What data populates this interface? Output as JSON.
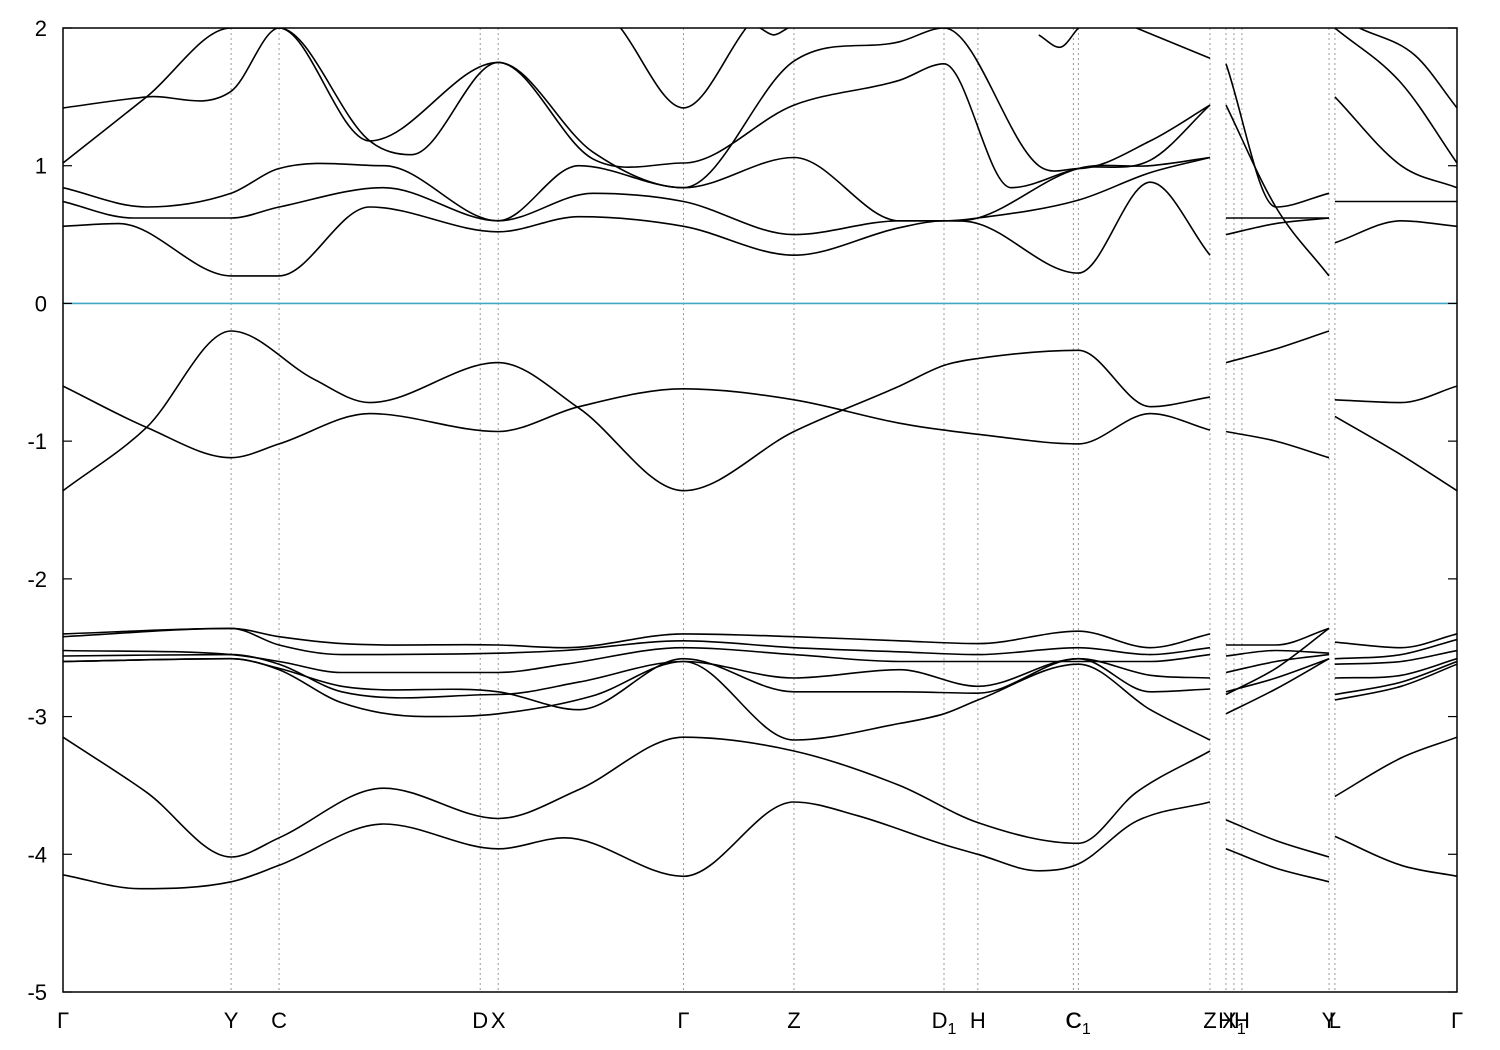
{
  "chart_data": {
    "type": "line",
    "title": "",
    "xlabel": "",
    "ylabel": "",
    "xlim": [
      0,
      1
    ],
    "ylim": [
      -5,
      2
    ],
    "yticks": [
      2,
      1,
      0,
      -1,
      -2,
      -3,
      -4,
      -5
    ],
    "ytick_labels": [
      "2",
      "1",
      "0",
      "-1",
      "-2",
      "-3",
      "-4",
      "-5"
    ],
    "grid": "vertical dotted lines at high-symmetry points",
    "fermi_level": {
      "value": 0,
      "color": "#3fa9c4"
    },
    "line_color": "#000000",
    "kpoints": [
      {
        "label": "Γ",
        "sub": "",
        "x": 0.0
      },
      {
        "label": "Y",
        "sub": "",
        "x": 0.1206
      },
      {
        "label": "C",
        "sub": "",
        "x": 0.155
      },
      {
        "label": "D",
        "sub": "",
        "x": 0.2993
      },
      {
        "label": "X",
        "sub": "",
        "x": 0.3122
      },
      {
        "label": "Γ",
        "sub": "",
        "x": 0.4451
      },
      {
        "label": "Z",
        "sub": "",
        "x": 0.5244
      },
      {
        "label": "D",
        "sub": "1",
        "x": 0.632
      },
      {
        "label": "H",
        "sub": "",
        "x": 0.6563
      },
      {
        "label": "C",
        "sub": "",
        "x": 0.7248
      },
      {
        "label": "C",
        "sub": "1",
        "x": 0.7284
      },
      {
        "label": "Z",
        "sub": "",
        "x": 0.8228
      },
      {
        "label": "H",
        "sub": "",
        "x": 0.8343
      },
      {
        "label": "X",
        "sub": "1",
        "x": 0.84
      },
      {
        "label": "H",
        "sub": "",
        "x": 0.8457
      },
      {
        "label": "Y",
        "sub": "",
        "x": 0.9082
      },
      {
        "label": "L",
        "sub": "",
        "x": 0.9124
      },
      {
        "label": "Γ",
        "sub": "",
        "x": 1.0
      }
    ],
    "series": [
      {
        "x": [
          0.0,
          0.055,
          0.1206,
          0.155,
          0.23,
          0.3122,
          0.36,
          0.4451,
          0.5244,
          0.57,
          0.632,
          0.6563,
          0.7,
          0.7284,
          0.77,
          0.8228
        ],
        "y": [
          -4.15,
          -4.25,
          -4.2,
          -4.08,
          -3.78,
          -3.96,
          -3.88,
          -4.16,
          -3.62,
          -3.72,
          -3.93,
          -4.0,
          -4.12,
          -4.07,
          -3.76,
          -3.62
        ]
      },
      {
        "x": [
          0.0,
          0.06,
          0.1206,
          0.155,
          0.23,
          0.3122,
          0.37,
          0.4451,
          0.5244,
          0.6,
          0.6563,
          0.7284,
          0.77,
          0.8228
        ],
        "y": [
          -3.15,
          -3.55,
          -4.02,
          -3.88,
          -3.52,
          -3.74,
          -3.53,
          -3.15,
          -3.25,
          -3.5,
          -3.77,
          -3.92,
          -3.55,
          -3.25
        ]
      },
      {
        "x": [
          0.8343,
          0.87,
          0.9082
        ],
        "y": [
          -3.75,
          -3.9,
          -4.02
        ]
      },
      {
        "x": [
          0.8343,
          0.87,
          0.9082
        ],
        "y": [
          -3.96,
          -4.1,
          -4.2
        ]
      },
      {
        "x": [
          0.9124,
          0.96,
          1.0
        ],
        "y": [
          -3.58,
          -3.3,
          -3.15
        ]
      },
      {
        "x": [
          0.9124,
          0.96,
          1.0
        ],
        "y": [
          -3.87,
          -4.08,
          -4.16
        ]
      },
      {
        "x": [
          0.0,
          0.1206,
          0.155,
          0.2,
          0.3122,
          0.36,
          0.4451,
          0.5244,
          0.6,
          0.6563,
          0.7284,
          0.78,
          0.8228
        ],
        "y": [
          -2.4,
          -2.36,
          -2.42,
          -2.47,
          -2.48,
          -2.5,
          -2.4,
          -2.42,
          -2.45,
          -2.47,
          -2.38,
          -2.5,
          -2.4
        ]
      },
      {
        "x": [
          0.0,
          0.1206,
          0.155,
          0.2,
          0.3122,
          0.36,
          0.4451,
          0.5244,
          0.6,
          0.6563,
          0.7284,
          0.78,
          0.8228
        ],
        "y": [
          -2.42,
          -2.36,
          -2.48,
          -2.55,
          -2.54,
          -2.52,
          -2.45,
          -2.5,
          -2.53,
          -2.55,
          -2.5,
          -2.55,
          -2.5
        ]
      },
      {
        "x": [
          0.0,
          0.1206,
          0.155,
          0.2,
          0.3122,
          0.36,
          0.4451,
          0.5244,
          0.6,
          0.6563,
          0.7284,
          0.78,
          0.8228
        ],
        "y": [
          -2.52,
          -2.55,
          -2.6,
          -2.68,
          -2.68,
          -2.62,
          -2.5,
          -2.55,
          -2.6,
          -2.6,
          -2.6,
          -2.6,
          -2.55
        ]
      },
      {
        "x": [
          0.0,
          0.1206,
          0.155,
          0.2,
          0.3122,
          0.37,
          0.4451,
          0.5244,
          0.6,
          0.6563,
          0.7284,
          0.78,
          0.8228
        ],
        "y": [
          -2.56,
          -2.55,
          -2.62,
          -2.82,
          -2.84,
          -2.75,
          -2.6,
          -2.72,
          -2.66,
          -2.78,
          -2.58,
          -2.7,
          -2.72
        ]
      },
      {
        "x": [
          0.0,
          0.1206,
          0.155,
          0.2,
          0.3122,
          0.37,
          0.4451,
          0.5244,
          0.6,
          0.6563,
          0.7284,
          0.78,
          0.8228
        ],
        "y": [
          -2.6,
          -2.58,
          -2.65,
          -2.78,
          -2.82,
          -2.95,
          -2.58,
          -2.82,
          -2.82,
          -2.83,
          -2.58,
          -2.82,
          -2.8
        ]
      },
      {
        "x": [
          0.0,
          0.1206,
          0.155,
          0.2,
          0.26,
          0.3122,
          0.38,
          0.4451,
          0.5244,
          0.6,
          0.632,
          0.6563,
          0.7284,
          0.78,
          0.8228
        ],
        "y": [
          -2.6,
          -2.58,
          -2.66,
          -2.9,
          -3.0,
          -2.98,
          -2.85,
          -2.6,
          -3.17,
          -3.05,
          -2.98,
          -2.88,
          -2.62,
          -2.95,
          -3.17
        ]
      },
      {
        "x": [
          0.8343,
          0.87,
          0.9082
        ],
        "y": [
          -2.48,
          -2.48,
          -2.36
        ]
      },
      {
        "x": [
          0.8343,
          0.87,
          0.9082
        ],
        "y": [
          -2.56,
          -2.52,
          -2.54
        ]
      },
      {
        "x": [
          0.8343,
          0.87,
          0.9082
        ],
        "y": [
          -2.68,
          -2.6,
          -2.55
        ]
      },
      {
        "x": [
          0.8343,
          0.87,
          0.9082
        ],
        "y": [
          -2.82,
          -2.72,
          -2.58
        ]
      },
      {
        "x": [
          0.8343,
          0.87,
          0.9082
        ],
        "y": [
          -2.84,
          -2.65,
          -2.36
        ]
      },
      {
        "x": [
          0.8343,
          0.87,
          0.9082
        ],
        "y": [
          -2.98,
          -2.8,
          -2.58
        ]
      },
      {
        "x": [
          0.9124,
          0.96,
          1.0
        ],
        "y": [
          -2.46,
          -2.5,
          -2.4
        ]
      },
      {
        "x": [
          0.9124,
          0.96,
          1.0
        ],
        "y": [
          -2.58,
          -2.55,
          -2.44
        ]
      },
      {
        "x": [
          0.9124,
          0.96,
          1.0
        ],
        "y": [
          -2.62,
          -2.6,
          -2.52
        ]
      },
      {
        "x": [
          0.9124,
          0.96,
          1.0
        ],
        "y": [
          -2.72,
          -2.7,
          -2.58
        ]
      },
      {
        "x": [
          0.9124,
          0.96,
          1.0
        ],
        "y": [
          -2.84,
          -2.75,
          -2.6
        ]
      },
      {
        "x": [
          0.9124,
          0.96,
          1.0
        ],
        "y": [
          -2.88,
          -2.78,
          -2.62
        ]
      },
      {
        "x": [
          0.0,
          0.06,
          0.1206,
          0.18,
          0.22,
          0.3122,
          0.37,
          0.4451,
          0.5244,
          0.6,
          0.632,
          0.6563,
          0.7284,
          0.78,
          0.8228
        ],
        "y": [
          -1.36,
          -0.9,
          -0.2,
          -0.55,
          -0.72,
          -0.43,
          -0.76,
          -1.36,
          -0.93,
          -0.6,
          -0.45,
          -0.4,
          -0.34,
          -0.75,
          -0.68
        ]
      },
      {
        "x": [
          0.0,
          0.06,
          0.1206,
          0.155,
          0.22,
          0.3122,
          0.37,
          0.4451,
          0.5244,
          0.6,
          0.632,
          0.6563,
          0.7284,
          0.78,
          0.8228
        ],
        "y": [
          -0.6,
          -0.9,
          -1.12,
          -1.02,
          -0.8,
          -0.93,
          -0.75,
          -0.62,
          -0.7,
          -0.87,
          -0.92,
          -0.95,
          -1.02,
          -0.8,
          -0.92
        ]
      },
      {
        "x": [
          0.8343,
          0.87,
          0.9082
        ],
        "y": [
          -0.43,
          -0.33,
          -0.2
        ]
      },
      {
        "x": [
          0.8343,
          0.87,
          0.9082
        ],
        "y": [
          -0.93,
          -1.0,
          -1.12
        ]
      },
      {
        "x": [
          0.9124,
          0.96,
          1.0
        ],
        "y": [
          -0.7,
          -0.72,
          -0.6
        ]
      },
      {
        "x": [
          0.9124,
          0.96,
          1.0
        ],
        "y": [
          -0.82,
          -1.1,
          -1.36
        ]
      },
      {
        "x": [
          0.0,
          0.04,
          0.1206,
          0.155,
          0.22,
          0.3122,
          0.37,
          0.4451,
          0.5244,
          0.6,
          0.632,
          0.6563,
          0.7284,
          0.78,
          0.8228
        ],
        "y": [
          0.56,
          0.58,
          0.2,
          0.2,
          0.7,
          0.52,
          0.63,
          0.56,
          0.35,
          0.55,
          0.6,
          0.58,
          0.22,
          0.88,
          0.35
        ]
      },
      {
        "x": [
          0.0,
          0.05,
          0.1206,
          0.155,
          0.23,
          0.3122,
          0.38,
          0.4451,
          0.5244,
          0.6,
          0.632,
          0.6563,
          0.7284,
          0.78,
          0.8228
        ],
        "y": [
          0.74,
          0.62,
          0.62,
          0.7,
          0.84,
          0.6,
          0.8,
          0.74,
          0.5,
          0.6,
          0.6,
          0.62,
          0.75,
          0.95,
          1.06
        ]
      },
      {
        "x": [
          0.0,
          0.06,
          0.1206,
          0.155,
          0.23,
          0.3122,
          0.37,
          0.4451,
          0.5244,
          0.6,
          0.632,
          0.6563,
          0.7284,
          0.78,
          0.8228
        ],
        "y": [
          0.84,
          0.7,
          0.8,
          0.98,
          1.0,
          0.6,
          1.0,
          0.84,
          1.06,
          0.6,
          0.6,
          0.62,
          0.98,
          1.0,
          1.06
        ]
      },
      {
        "x": [
          0.0,
          0.06,
          0.1206,
          0.155,
          0.22,
          0.3122,
          0.38,
          0.4451,
          0.5244,
          0.6,
          0.632,
          0.68,
          0.7284,
          0.78,
          0.8228
        ],
        "y": [
          1.02,
          1.5,
          2.0,
          2.0,
          1.18,
          1.75,
          1.05,
          1.02,
          1.44,
          1.62,
          1.74,
          0.84,
          0.98,
          1.04,
          1.44
        ]
      },
      {
        "x": [
          0.0,
          0.06,
          0.1206,
          0.155,
          0.22,
          0.25,
          0.3122,
          0.38,
          0.4451,
          0.5244,
          0.6,
          0.632,
          0.7,
          0.7284,
          0.78,
          0.8228
        ],
        "y": [
          1.42,
          1.5,
          1.54,
          2.0,
          1.18,
          1.08,
          1.75,
          1.1,
          0.84,
          1.76,
          1.9,
          2.0,
          1.0,
          0.98,
          1.18,
          1.44
        ]
      },
      {
        "x": [
          0.4,
          0.4451,
          0.49
        ],
        "y": [
          2.0,
          1.42,
          2.0
        ]
      },
      {
        "x": [
          0.5,
          0.51,
          0.52
        ],
        "y": [
          2.0,
          1.95,
          2.0
        ]
      },
      {
        "x": [
          0.7,
          0.715,
          0.7284
        ],
        "y": [
          1.95,
          1.86,
          2.0
        ]
      },
      {
        "x": [
          0.77,
          0.8228
        ],
        "y": [
          2.0,
          1.78
        ]
      },
      {
        "x": [
          0.8343,
          0.87,
          0.9082
        ],
        "y": [
          0.62,
          0.62,
          0.62
        ]
      },
      {
        "x": [
          0.8343,
          0.87,
          0.9082
        ],
        "y": [
          0.5,
          0.58,
          0.62
        ]
      },
      {
        "x": [
          0.8343,
          0.87,
          0.9082
        ],
        "y": [
          1.44,
          0.7,
          0.2
        ]
      },
      {
        "x": [
          0.8343,
          0.87,
          0.9082
        ],
        "y": [
          1.74,
          0.7,
          0.8
        ]
      },
      {
        "x": [
          0.9124,
          0.96,
          1.0
        ],
        "y": [
          0.44,
          0.6,
          0.56
        ]
      },
      {
        "x": [
          0.9124,
          0.96,
          1.0
        ],
        "y": [
          0.74,
          0.74,
          0.74
        ]
      },
      {
        "x": [
          0.9124,
          0.96,
          1.0
        ],
        "y": [
          1.5,
          1.0,
          0.84
        ]
      },
      {
        "x": [
          0.9124,
          0.96,
          1.0
        ],
        "y": [
          2.0,
          1.6,
          1.02
        ]
      },
      {
        "x": [
          0.93,
          0.97,
          1.0
        ],
        "y": [
          2.0,
          1.8,
          1.42
        ]
      }
    ]
  }
}
